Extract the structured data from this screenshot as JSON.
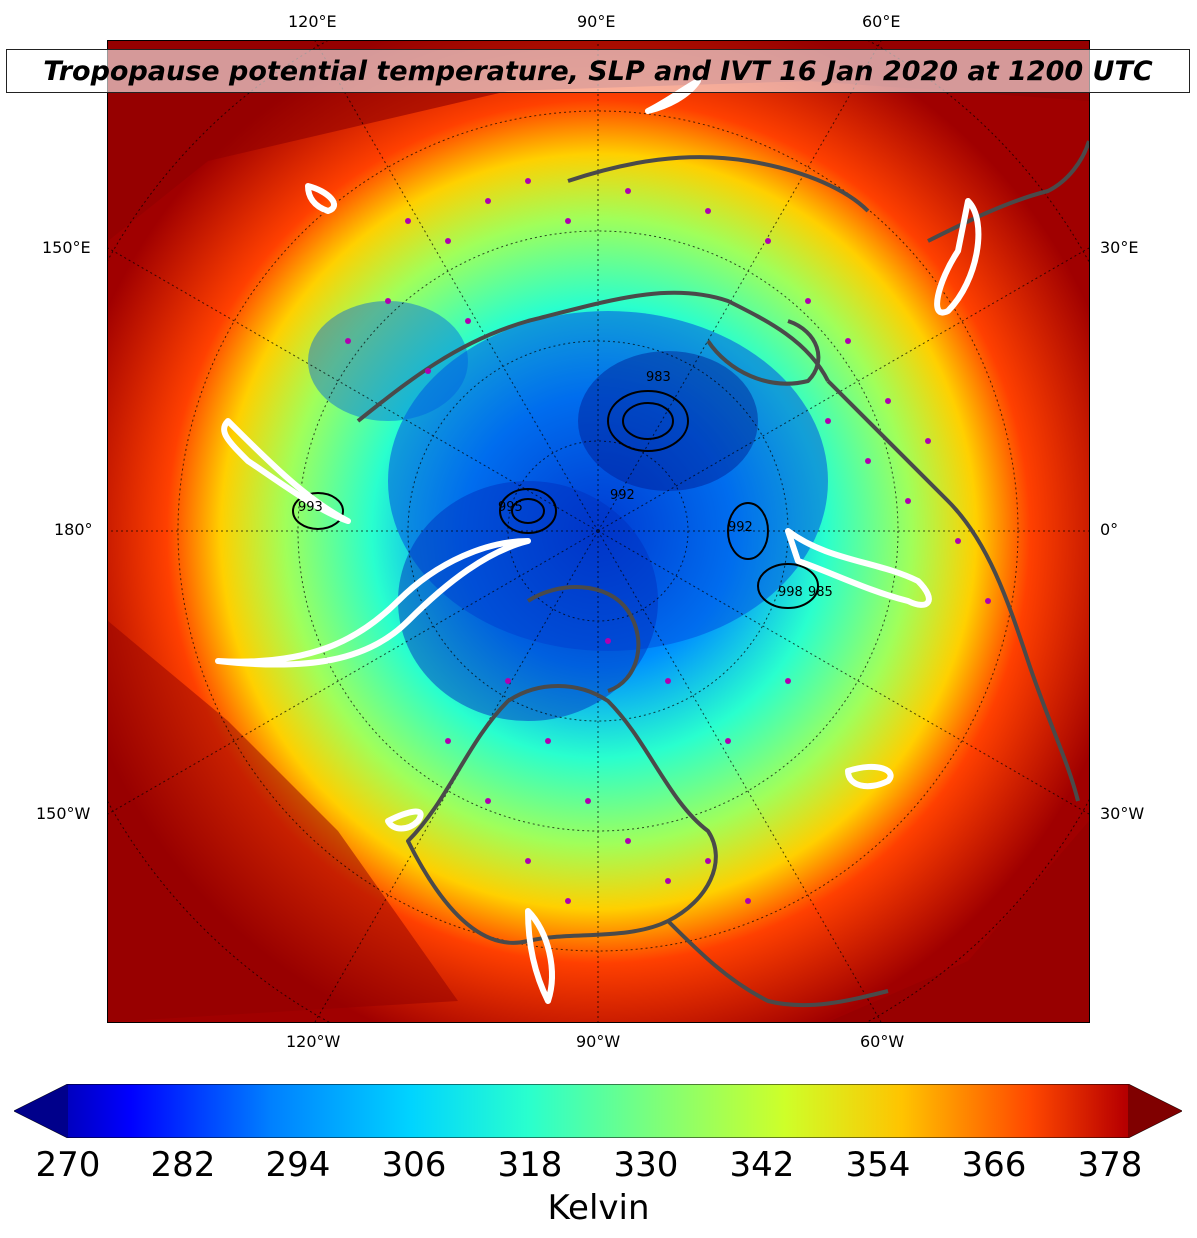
{
  "title": "Tropopause potential temperature, SLP and IVT 16 Jan 2020 at 1200 UTC",
  "lon_labels": {
    "top": [
      "120°E",
      "90°E",
      "60°E"
    ],
    "left": [
      "150°E",
      "180°",
      "150°W"
    ],
    "right": [
      "30°E",
      "0°",
      "30°W"
    ],
    "bottom": [
      "120°W",
      "90°W",
      "60°W"
    ]
  },
  "colorbar": {
    "ticks": [
      "270",
      "282",
      "294",
      "306",
      "318",
      "330",
      "342",
      "354",
      "366",
      "378"
    ],
    "label": "Kelvin",
    "colors": [
      "#00008b",
      "#0000ff",
      "#0080ff",
      "#00d4ff",
      "#29ffce",
      "#7dff7a",
      "#ceff29",
      "#ffc400",
      "#ff4800",
      "#b80000",
      "#800000"
    ]
  },
  "slp_labels": [
    "983",
    "992",
    "995",
    "992",
    "993",
    "998",
    "985"
  ],
  "colors": {
    "land_outline": "#4a4a4a",
    "obs_marker": "#b000b0",
    "ivt_contour": "#ffffff",
    "slp_contour": "#000000"
  }
}
